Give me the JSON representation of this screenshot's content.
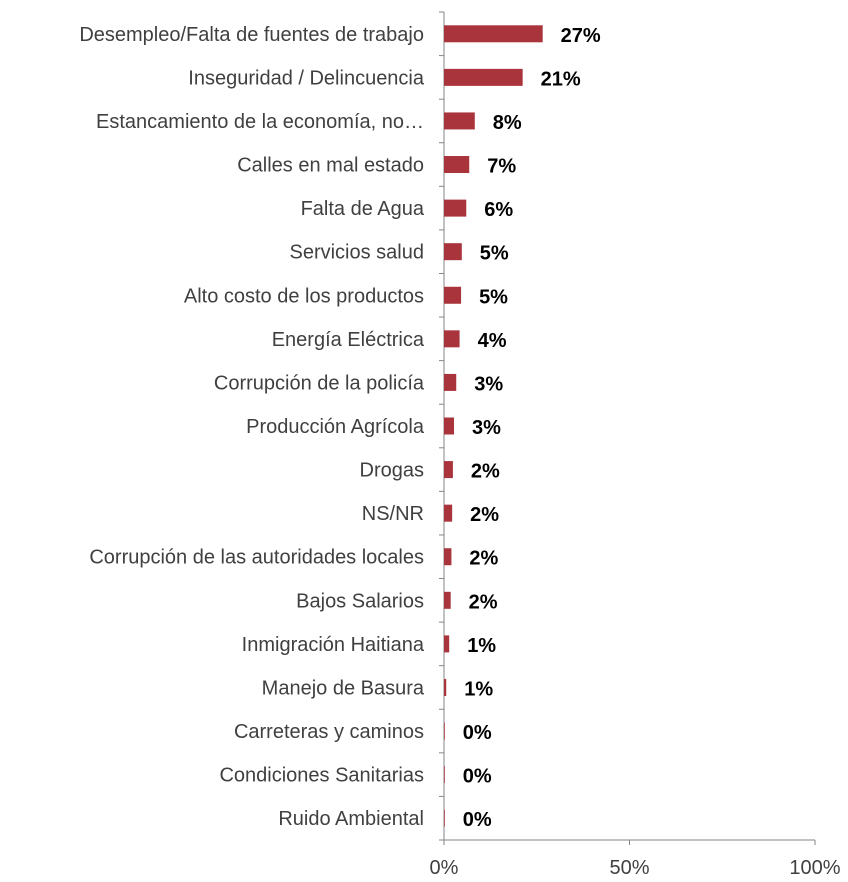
{
  "chart_data": {
    "type": "bar",
    "orientation": "horizontal",
    "categories": [
      "Desempleo/Falta de fuentes de trabajo",
      "Inseguridad / Delincuencia",
      "Estancamiento de la economía, no…",
      "Calles en mal estado",
      "Falta de Agua",
      "Servicios salud",
      "Alto costo de los productos",
      "Energía Eléctrica",
      "Corrupción de la policía",
      "Producción Agrícola",
      "Drogas",
      "NS/NR",
      "Corrupción de las autoridades locales",
      "Bajos Salarios",
      "Inmigración Haitiana",
      "Manejo de Basura",
      "Carreteras y caminos",
      "Condiciones Sanitarias",
      "Ruido Ambiental"
    ],
    "values": [
      26.6,
      21.2,
      8.3,
      6.8,
      6.0,
      4.8,
      4.6,
      4.2,
      3.3,
      2.7,
      2.4,
      2.2,
      2.0,
      1.8,
      1.4,
      0.6,
      0.2,
      0.2,
      0.1
    ],
    "value_labels": [
      "27%",
      "21%",
      "8%",
      "7%",
      "6%",
      "5%",
      "5%",
      "4%",
      "3%",
      "3%",
      "2%",
      "2%",
      "2%",
      "2%",
      "1%",
      "1%",
      "0%",
      "0%",
      "0%"
    ],
    "xlim": [
      0,
      100
    ],
    "xticks": [
      "0%",
      "50%",
      "100%"
    ],
    "bar_color": "#A9343C",
    "grid": false,
    "legend": "none"
  }
}
